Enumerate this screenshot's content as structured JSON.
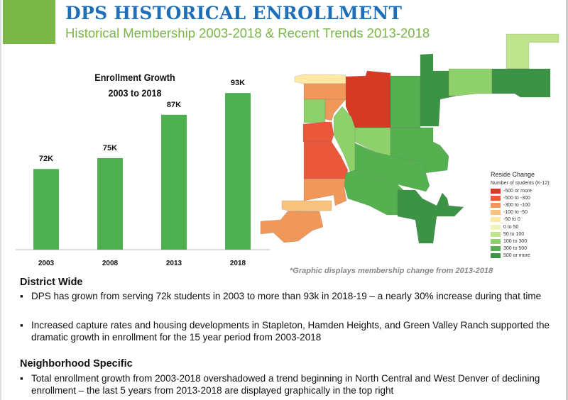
{
  "header": {
    "title": "DPS HISTORICAL ENROLLMENT",
    "subtitle": "Historical Membership 2003-2018 & Recent Trends 2013-2018"
  },
  "chart_data": {
    "type": "bar",
    "title_line1": "Enrollment Growth",
    "title_line2": "2003 to 2018",
    "categories": [
      "2003",
      "2008",
      "2013",
      "2018"
    ],
    "values": [
      72,
      75,
      87,
      93
    ],
    "data_labels": [
      "72K",
      "75K",
      "87K",
      "93K"
    ],
    "unit": "thousand students",
    "color": "#4caf50",
    "xlabel": "",
    "ylabel": ""
  },
  "map": {
    "legend_title": "Reside Change",
    "legend_subtitle": "Number of students (K-12):",
    "legend": [
      {
        "label": "-500 or more",
        "color": "#d73a24"
      },
      {
        "label": "-500 to -300",
        "color": "#e9583a"
      },
      {
        "label": "-300 to -100",
        "color": "#f0975a"
      },
      {
        "label": "-100 to -50",
        "color": "#f8c37d"
      },
      {
        "label": "-50 to 0",
        "color": "#fde8a4"
      },
      {
        "label": "0 to 50",
        "color": "#eef5b8"
      },
      {
        "label": "50 to 100",
        "color": "#bfe48b"
      },
      {
        "label": "100 to 300",
        "color": "#8ed16a"
      },
      {
        "label": "300 to 500",
        "color": "#55b04f"
      },
      {
        "label": "500 or more",
        "color": "#3d9345"
      }
    ],
    "footnote": "*Graphic displays membership change from 2013-2018"
  },
  "body": {
    "district_heading": "District Wide",
    "district_bullets": [
      "DPS has grown from serving 72k students in 2003 to more than 93k in 2018-19 – a nearly 30% increase during that time",
      "Increased capture rates and housing developments in Stapleton, Hamden Heights, and Green Valley Ranch supported the dramatic growth in enrollment for the 15 year period from 2003-2018"
    ],
    "neighborhood_heading": "Neighborhood Specific",
    "neighborhood_bullets": [
      "Total enrollment growth from 2003-2018 overshadowed a trend beginning in North Central and West Denver of declining enrollment – the last 5 years from 2013-2018 are displayed graphically in the top right"
    ],
    "bullet_char": "▪"
  }
}
